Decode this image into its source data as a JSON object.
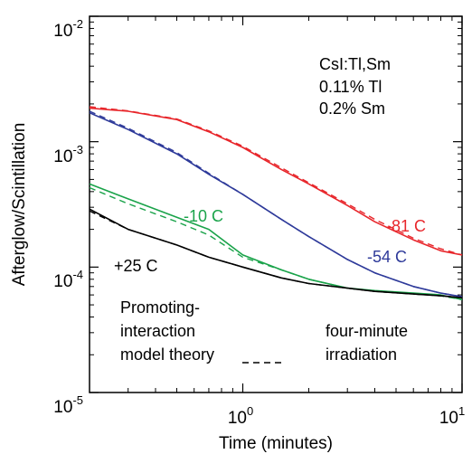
{
  "chart_data": {
    "type": "line",
    "title": "",
    "xlabel": "Time (minutes)",
    "ylabel": "Afterglow/Scintillation",
    "x_scale": "log",
    "y_scale": "log",
    "xlim": [
      0.2,
      10
    ],
    "ylim": [
      1e-05,
      0.01
    ],
    "x_ticks": [
      {
        "value": 1,
        "base": "10",
        "exp": "0"
      },
      {
        "value": 10,
        "base": "10",
        "exp": "1"
      }
    ],
    "y_ticks": [
      {
        "value": 0.01,
        "base": "10",
        "exp": "-2"
      },
      {
        "value": 0.001,
        "base": "10",
        "exp": "-3"
      },
      {
        "value": 0.0001,
        "base": "10",
        "exp": "-4"
      },
      {
        "value": 1e-05,
        "base": "10",
        "exp": "-5"
      }
    ],
    "grid": false,
    "series": [
      {
        "name": "-81 C",
        "color": "#e8262b",
        "x": [
          0.2,
          0.3,
          0.5,
          0.7,
          1.0,
          1.5,
          2.0,
          3.0,
          4.0,
          6.0,
          8.0,
          10.0
        ],
        "measured": [
          0.00185,
          0.00175,
          0.0015,
          0.0012,
          0.0009,
          0.0006,
          0.00046,
          0.00031,
          0.00023,
          0.000165,
          0.000135,
          0.000125
        ],
        "theory": [
          0.0019,
          0.00176,
          0.00152,
          0.00122,
          0.00092,
          0.00062,
          0.00047,
          0.00032,
          0.00024,
          0.00017,
          0.00014,
          0.000125
        ]
      },
      {
        "name": "-54 C",
        "color": "#2e3a9a",
        "x": [
          0.2,
          0.3,
          0.5,
          0.7,
          1.0,
          1.5,
          2.0,
          3.0,
          4.0,
          6.0,
          8.0,
          10.0
        ],
        "measured": [
          0.0017,
          0.00125,
          0.0008,
          0.00055,
          0.00038,
          0.00024,
          0.000175,
          0.000115,
          9e-05,
          7e-05,
          6.2e-05,
          5.8e-05
        ],
        "theory": [
          0.00175,
          0.00128,
          0.00082,
          0.00056,
          0.00038,
          0.00024,
          0.000175,
          0.000115,
          9e-05,
          7e-05,
          6.2e-05,
          5.8e-05
        ]
      },
      {
        "name": "-10 C",
        "color": "#1aa34a",
        "x": [
          0.2,
          0.3,
          0.5,
          0.7,
          1.0,
          1.5,
          2.0,
          3.0,
          4.0,
          6.0,
          8.0,
          10.0
        ],
        "measured": [
          0.00046,
          0.00035,
          0.00025,
          0.0002,
          0.000125,
          9.5e-05,
          8e-05,
          6.8e-05,
          6.5e-05,
          6.2e-05,
          6e-05,
          5.5e-05
        ],
        "theory": [
          0.00043,
          0.00032,
          0.00023,
          0.00018,
          0.00012,
          9.5e-05,
          8e-05,
          6.8e-05,
          6.4e-05,
          6.1e-05,
          5.9e-05,
          5.5e-05
        ]
      },
      {
        "name": "+25 C",
        "color": "#000000",
        "x": [
          0.2,
          0.3,
          0.5,
          0.7,
          1.0,
          1.5,
          2.0,
          3.0,
          4.0,
          6.0,
          8.0,
          10.0
        ],
        "measured": [
          0.00029,
          0.0002,
          0.00015,
          0.00012,
          0.0001,
          8.2e-05,
          7.4e-05,
          6.8e-05,
          6.4e-05,
          6.1e-05,
          5.9e-05,
          5.7e-05
        ],
        "theory": [
          0.00028,
          0.0002,
          0.00015,
          0.00012,
          0.0001,
          8.2e-05,
          7.4e-05,
          6.8e-05,
          6.4e-05,
          6.1e-05,
          5.9e-05,
          5.7e-05
        ]
      }
    ]
  },
  "annotations": {
    "material": "CsI:Tl,Sm",
    "tl_conc": "0.11% Tl",
    "sm_conc": "0.2% Sm",
    "label_m81": "-81 C",
    "label_m54": "-54 C",
    "label_m10": "-10 C",
    "label_p25": "+25 C",
    "model_line1": "Promoting-",
    "model_line2": "interaction",
    "model_line3": "model theory",
    "irr_line1": "four-minute",
    "irr_line2": "irradiation"
  }
}
